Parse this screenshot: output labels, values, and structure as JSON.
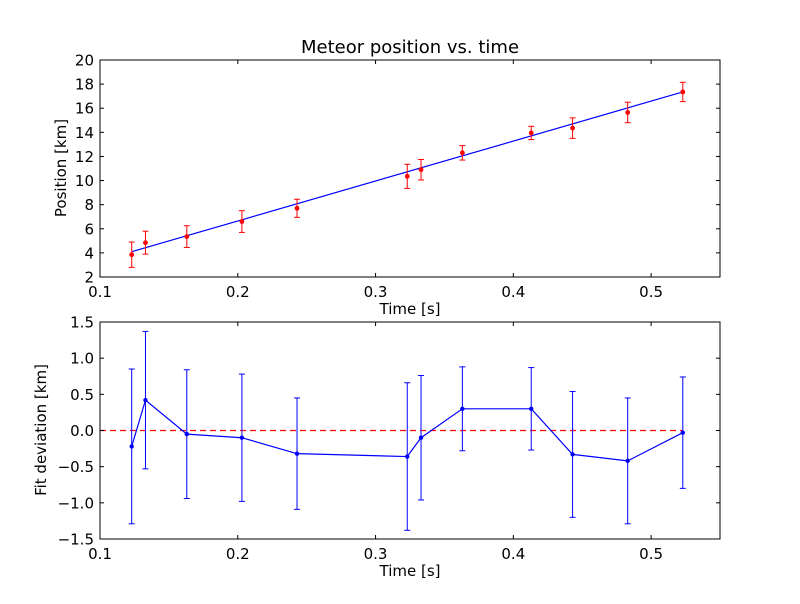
{
  "chart_data": [
    {
      "type": "scatter",
      "title": "Meteor position vs. time",
      "xlabel": "Time [s]",
      "ylabel": "Position [km]",
      "xlim": [
        0.1,
        0.55
      ],
      "ylim": [
        2,
        20
      ],
      "xticks": [
        "0.1",
        "0.2",
        "0.3",
        "0.4",
        "0.5"
      ],
      "yticks": [
        "2",
        "4",
        "6",
        "8",
        "10",
        "12",
        "14",
        "16",
        "18",
        "20"
      ],
      "grid": false,
      "colors": {
        "points": "#ff0000",
        "errorbars": "#ff0000",
        "fit_line": "#0000ff"
      },
      "points": {
        "x": [
          0.123,
          0.133,
          0.163,
          0.203,
          0.243,
          0.323,
          0.333,
          0.363,
          0.413,
          0.443,
          0.483,
          0.523
        ],
        "y": [
          3.85,
          4.85,
          5.35,
          6.6,
          7.7,
          10.35,
          10.9,
          12.3,
          13.95,
          14.35,
          15.65,
          17.35
        ],
        "err": [
          1.05,
          0.95,
          0.9,
          0.9,
          0.75,
          1.0,
          0.85,
          0.6,
          0.55,
          0.85,
          0.85,
          0.8
        ]
      },
      "fit_line": {
        "x": [
          0.123,
          0.523
        ],
        "y": [
          4.1,
          17.35
        ]
      }
    },
    {
      "type": "line",
      "title": "",
      "xlabel": "Time [s]",
      "ylabel": "Fit deviation [km]",
      "xlim": [
        0.1,
        0.55
      ],
      "ylim": [
        -1.5,
        1.5
      ],
      "xticks": [
        "0.1",
        "0.2",
        "0.3",
        "0.4",
        "0.5"
      ],
      "yticks": [
        "−1.5",
        "−1.0",
        "−0.5",
        "0.0",
        "0.5",
        "1.0",
        "1.5"
      ],
      "grid": false,
      "colors": {
        "series": "#0000ff",
        "zero_line": "#ff0000"
      },
      "series": {
        "x": [
          0.123,
          0.133,
          0.163,
          0.203,
          0.243,
          0.323,
          0.333,
          0.363,
          0.413,
          0.443,
          0.483,
          0.523
        ],
        "y": [
          -0.22,
          0.42,
          -0.05,
          -0.1,
          -0.32,
          -0.36,
          -0.1,
          0.3,
          0.3,
          -0.33,
          -0.42,
          -0.03
        ],
        "err": [
          1.07,
          0.95,
          0.89,
          0.88,
          0.77,
          1.02,
          0.86,
          0.58,
          0.57,
          0.87,
          0.87,
          0.77
        ]
      },
      "reference_line": {
        "y": 0.0,
        "style": "dashed"
      }
    }
  ]
}
